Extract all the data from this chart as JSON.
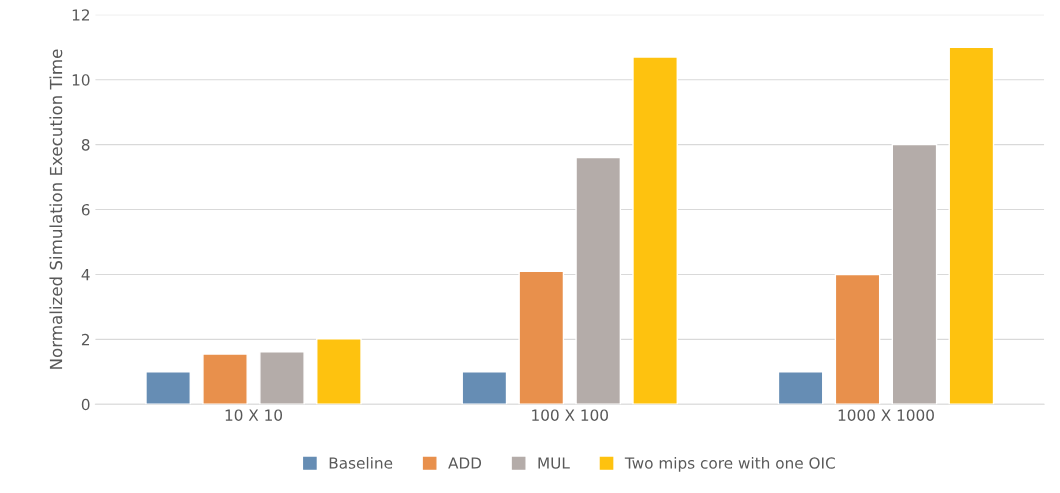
{
  "chart_data": {
    "type": "bar",
    "ylabel": "Normalized Simulation Execution Time",
    "categories": [
      "10 X 10",
      "100 X 100",
      "1000 X 1000"
    ],
    "series": [
      {
        "name": "Baseline",
        "color": "#668db4",
        "values": [
          1,
          1,
          1
        ]
      },
      {
        "name": "ADD",
        "color": "#e8904c",
        "values": [
          1.55,
          4.1,
          4.0
        ]
      },
      {
        "name": "MUL",
        "color": "#b4aca9",
        "values": [
          1.62,
          7.6,
          8.0
        ]
      },
      {
        "name": "Two mips core with one OIC",
        "color": "#fec20f",
        "values": [
          2.02,
          10.7,
          11.0
        ]
      }
    ],
    "ylim": [
      0,
      12
    ],
    "yticks": [
      0,
      2,
      4,
      6,
      8,
      10,
      12
    ],
    "grid": "y",
    "legend": "bottom"
  }
}
